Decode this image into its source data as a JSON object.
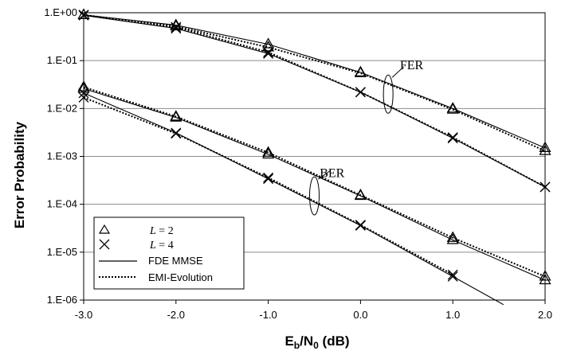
{
  "chart_data": {
    "type": "line",
    "xlabel": "Eb/N0 (dB)",
    "xlabel_parts": {
      "main": "E",
      "sub1": "b",
      "mid": "/N",
      "sub2": "0",
      "tail": " (dB)"
    },
    "ylabel": "Error Probability",
    "yscale": "log",
    "xlim": [
      -3.0,
      2.0
    ],
    "ylim": [
      1e-06,
      1.0
    ],
    "xticks": [
      -3,
      -2,
      -1,
      0,
      1,
      2
    ],
    "xtick_labels": [
      "-3.0",
      "-2.0",
      "-1.0",
      "0.0",
      "1.0",
      "2.0"
    ],
    "yticks": [
      1e-06,
      1e-05,
      0.0001,
      0.001,
      0.01,
      0.1,
      1
    ],
    "ytick_labels": [
      "1.E-06",
      "1.E-05",
      "1.E-04",
      "1.E-03",
      "1.E-02",
      "1.E-01",
      "1.E+00"
    ],
    "grid": "horizontal",
    "legend_position": "bottom-left",
    "legend": [
      {
        "marker": "triangle",
        "label": "L = 2",
        "label_parts": [
          "L",
          " = 2"
        ]
      },
      {
        "marker": "cross",
        "label": "L = 4",
        "label_parts": [
          "L",
          " = 4"
        ]
      },
      {
        "line": "solid",
        "label": "FDE MMSE"
      },
      {
        "line": "dotted",
        "label": "EMI-Evolution"
      }
    ],
    "annotations": [
      {
        "text": "FER",
        "x": 0.6,
        "y": 0.08
      },
      {
        "text": "BER",
        "x": -0.2,
        "y": 0.00045
      }
    ],
    "x": [
      -3,
      -2,
      -1,
      0,
      1,
      2
    ],
    "series": [
      {
        "metric": "FER",
        "L": 2,
        "style": "solid",
        "marker": "triangle",
        "values": [
          0.9,
          0.55,
          0.22,
          0.057,
          0.01,
          0.0015
        ]
      },
      {
        "metric": "FER",
        "L": 2,
        "style": "dotted",
        "marker": "triangle",
        "values": [
          0.9,
          0.52,
          0.19,
          0.055,
          0.0095,
          0.0013
        ]
      },
      {
        "metric": "FER",
        "L": 4,
        "style": "solid",
        "marker": "cross",
        "values": [
          0.88,
          0.47,
          0.14,
          0.022,
          0.0024,
          0.00023
        ]
      },
      {
        "metric": "FER",
        "L": 4,
        "style": "dotted",
        "marker": "cross",
        "values": [
          0.9,
          0.5,
          0.15,
          0.022,
          0.0025,
          0.00023
        ]
      },
      {
        "metric": "BER",
        "L": 2,
        "style": "solid",
        "marker": "triangle",
        "values": [
          0.026,
          0.0065,
          0.0011,
          0.00015,
          1.8e-05,
          2.6e-06
        ]
      },
      {
        "metric": "BER",
        "L": 2,
        "style": "dotted",
        "marker": "triangle",
        "values": [
          0.028,
          0.0068,
          0.0012,
          0.000155,
          2e-05,
          3.1e-06
        ]
      },
      {
        "metric": "BER",
        "L": 4,
        "style": "solid",
        "marker": "cross",
        "values": [
          0.021,
          0.0031,
          0.00034,
          3.6e-05,
          3.1e-06,
          null
        ]
      },
      {
        "metric": "BER",
        "L": 4,
        "style": "dotted",
        "marker": "cross",
        "values": [
          0.017,
          0.003,
          0.00036,
          3.7e-05,
          3.4e-06,
          null
        ]
      },
      {
        "metric": "BER",
        "L": 4,
        "style": "solid",
        "marker": "none",
        "tail": [
          [
            1.0,
            3.1e-06
          ],
          [
            1.55,
            8e-07
          ]
        ]
      }
    ]
  }
}
